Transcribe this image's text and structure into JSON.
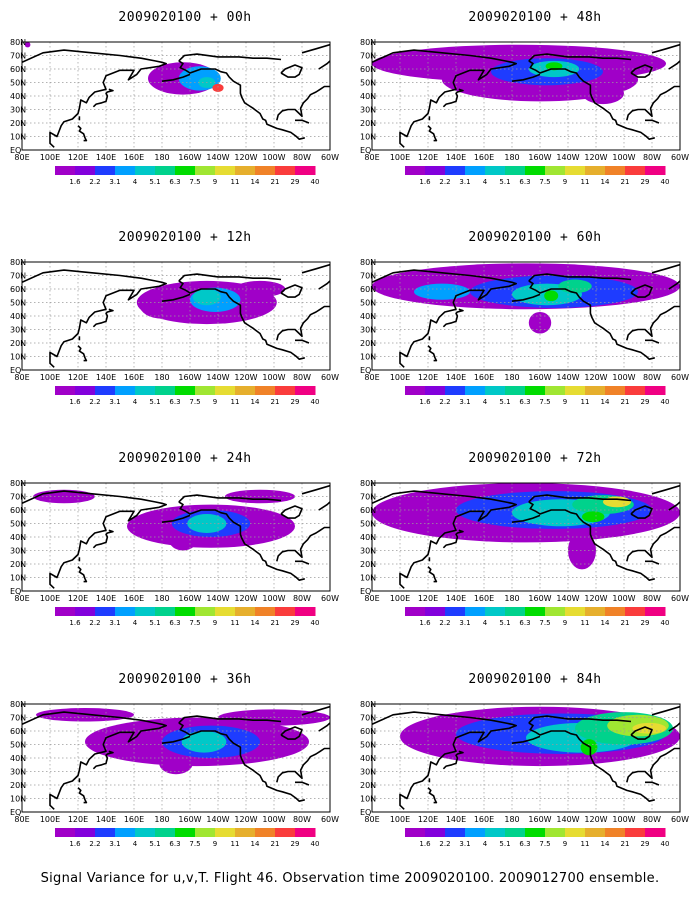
{
  "caption": "Signal Variance for u,v,T. Flight 46. Observation time 2009020100. 2009012700 ensemble.",
  "lat_labels": [
    "80N",
    "70N",
    "60N",
    "50N",
    "40N",
    "30N",
    "20N",
    "10N",
    "EQ"
  ],
  "lon_labels": [
    "80E",
    "100E",
    "120E",
    "140E",
    "160E",
    "180",
    "160W",
    "140W",
    "120W",
    "100W",
    "80W",
    "60W"
  ],
  "colorbar": {
    "labels": [
      "1.6",
      "2.2",
      "3.1",
      "4",
      "5.1",
      "6.3",
      "7.5",
      "9",
      "11",
      "14",
      "21",
      "29",
      "40"
    ],
    "colors": [
      "#a000c8",
      "#8200dc",
      "#1e3cff",
      "#00a0ff",
      "#00c8c8",
      "#00d28c",
      "#00dc00",
      "#a0e632",
      "#e6dc32",
      "#e6af2d",
      "#f08228",
      "#fa3c3c",
      "#f00082"
    ]
  },
  "panels": [
    {
      "title": "2009020100 + 00h",
      "lead_hours": 0
    },
    {
      "title": "2009020100 + 48h",
      "lead_hours": 48
    },
    {
      "title": "2009020100 + 12h",
      "lead_hours": 12
    },
    {
      "title": "2009020100 + 60h",
      "lead_hours": 60
    },
    {
      "title": "2009020100 + 24h",
      "lead_hours": 24
    },
    {
      "title": "2009020100 + 72h",
      "lead_hours": 72
    },
    {
      "title": "2009020100 + 36h",
      "lead_hours": 36
    },
    {
      "title": "2009020100 + 84h",
      "lead_hours": 84
    }
  ]
}
